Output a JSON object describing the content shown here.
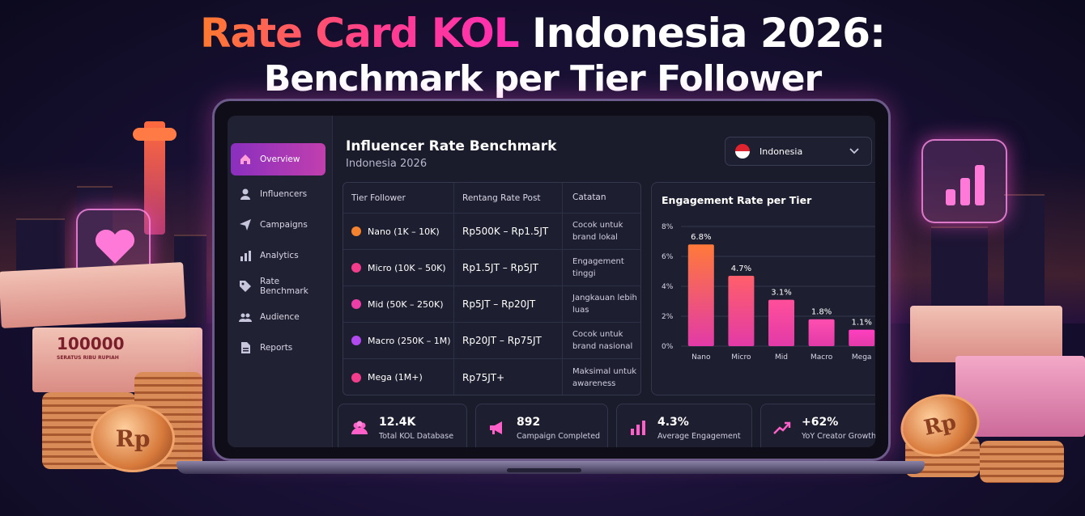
{
  "headline": {
    "line1_highlight": "Rate Card KOL",
    "line1_rest": " Indonesia 2026:",
    "line2": "Benchmark per Tier Follower"
  },
  "sidebar": {
    "items": [
      {
        "label": "Overview",
        "icon": "home-icon",
        "active": true
      },
      {
        "label": "Influencers",
        "icon": "user-icon"
      },
      {
        "label": "Campaigns",
        "icon": "send-icon"
      },
      {
        "label": "Analytics",
        "icon": "bar-chart-icon"
      },
      {
        "label": "Rate Benchmark",
        "icon": "tag-icon"
      },
      {
        "label": "Audience",
        "icon": "users-icon"
      },
      {
        "label": "Reports",
        "icon": "document-icon"
      }
    ]
  },
  "dashboard": {
    "title": "Influencer Rate Benchmark",
    "subtitle": "Indonesia 2026",
    "country_select": "Indonesia"
  },
  "table": {
    "headers": [
      "Tier Follower",
      "Rentang Rate Post",
      "Catatan"
    ],
    "rows": [
      {
        "tier": "Nano (1K – 10K)",
        "rate": "Rp500K – Rp1.5JT",
        "note": "Cocok untuk brand lokal",
        "color": "#f5822f"
      },
      {
        "tier": "Micro (10K – 50K)",
        "rate": "Rp1.5JT – Rp5JT",
        "note": "Engagement tinggi",
        "color": "#f23d8c"
      },
      {
        "tier": "Mid (50K – 250K)",
        "rate": "Rp5JT – Rp20JT",
        "note": "Jangkauan lebih luas",
        "color": "#ee3fa8"
      },
      {
        "tier": "Macro (250K – 1M)",
        "rate": "Rp20JT – Rp75JT",
        "note": "Cocok untuk brand nasional",
        "color": "#b34af0"
      },
      {
        "tier": "Mega (1M+)",
        "rate": "Rp75JT+",
        "note": "Maksimal untuk awareness",
        "color": "#f23d8c"
      }
    ]
  },
  "chart_data": {
    "type": "bar",
    "title": "Engagement Rate per Tier",
    "categories": [
      "Nano",
      "Micro",
      "Mid",
      "Macro",
      "Mega"
    ],
    "values": [
      6.8,
      4.7,
      3.1,
      1.8,
      1.1
    ],
    "value_labels": [
      "6.8%",
      "4.7%",
      "3.1%",
      "1.8%",
      "1.1%"
    ],
    "yticks": [
      "0%",
      "2%",
      "4%",
      "6%",
      "8%"
    ],
    "ylim": [
      0,
      8
    ],
    "grid": true,
    "bar_colors": [
      "#ff7a3a",
      "#ff5f6a",
      "#ff4f9a",
      "#ff4fb0",
      "#ff3fc0"
    ]
  },
  "stats": [
    {
      "value": "12.4K",
      "label": "Total KOL Database",
      "icon": "users-icon"
    },
    {
      "value": "892",
      "label": "Campaign Completed",
      "icon": "megaphone-icon"
    },
    {
      "value": "4.3%",
      "label": "Average Engagement",
      "icon": "bar-chart-icon"
    },
    {
      "value": "+62%",
      "label": "YoY Creator Growth",
      "icon": "trend-up-icon"
    }
  ],
  "decor": {
    "banknote_value": "100000",
    "banknote_text": "SERATUS RIBU RUPIAH",
    "coin_text": "Rp"
  },
  "colors": {
    "accent_pink": "#ff3fb4",
    "accent_orange": "#ff7a2f",
    "active_nav": "#a83bbf"
  }
}
